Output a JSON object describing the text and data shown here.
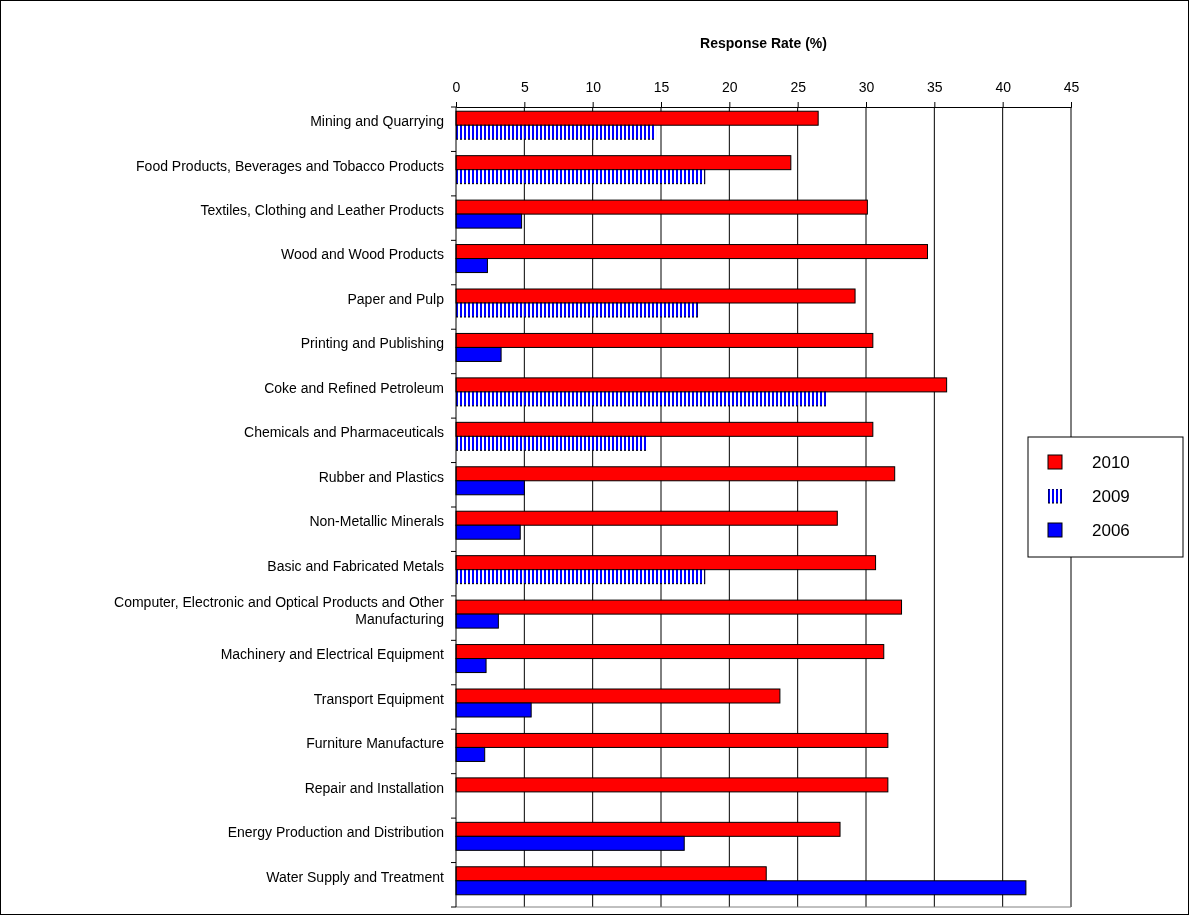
{
  "chart_data": {
    "type": "bar",
    "orientation": "horizontal",
    "xlabel": "Response Rate (%)",
    "categories": [
      "Mining and Quarrying",
      "Food Products, Beverages and Tobacco Products",
      "Textiles, Clothing and Leather Products",
      "Wood and Wood Products",
      "Paper and Pulp",
      "Printing and Publishing",
      "Coke and Refined Petroleum",
      "Chemicals and Pharmaceuticals",
      "Rubber and Plastics",
      "Non-Metallic Minerals",
      "Basic and Fabricated Metals",
      "Computer, Electronic and Optical Products and Other Manufacturing",
      "Machinery and Electrical Equipment",
      "Transport Equipment",
      "Furniture Manufacture",
      "Repair and Installation",
      "Energy Production and Distribution",
      "Water Supply and Treatment"
    ],
    "series": [
      {
        "name": "2010",
        "color": "#ff0000",
        "values": [
          26.5,
          24.5,
          30.1,
          34.5,
          29.2,
          30.5,
          35.9,
          30.5,
          32.1,
          27.9,
          30.7,
          32.6,
          31.3,
          23.7,
          31.6,
          31.6,
          28.1,
          22.7
        ]
      },
      {
        "name": "2009",
        "color": "#0000ff",
        "values": [
          14.6,
          18.2,
          null,
          null,
          17.7,
          null,
          27.1,
          14.0,
          null,
          null,
          18.2,
          null,
          null,
          null,
          null,
          null,
          null,
          null
        ]
      },
      {
        "name": "2006",
        "color": "#0000ff",
        "values": [
          null,
          null,
          4.8,
          2.3,
          null,
          3.3,
          null,
          null,
          5.0,
          4.7,
          null,
          3.1,
          2.2,
          5.5,
          2.1,
          null,
          16.7,
          41.7
        ]
      }
    ],
    "xlim": [
      0,
      45
    ],
    "xticks": [
      0,
      5,
      10,
      15,
      20,
      25,
      30,
      35,
      40,
      45
    ],
    "grid": "x",
    "legend": "right"
  }
}
